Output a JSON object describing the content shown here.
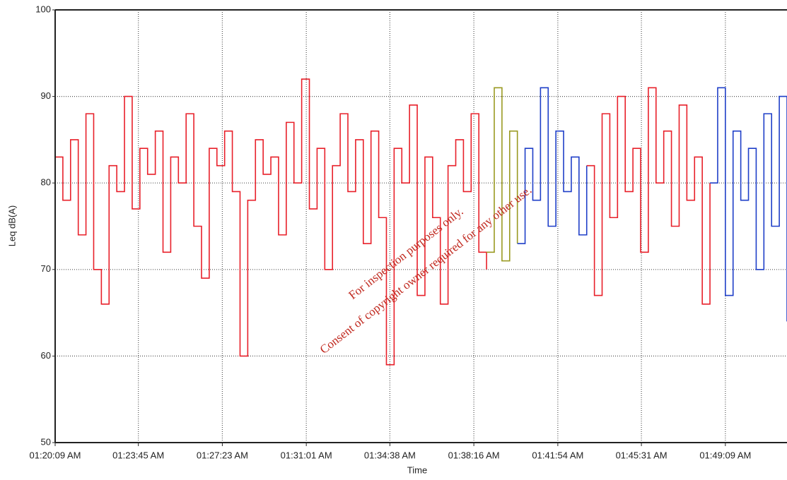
{
  "chart_data": {
    "type": "step-line",
    "y_label": "Leq dB(A)",
    "x_label": "Time",
    "annotations": [
      "For inspection purposes only.",
      "Consent of copyright owner required for any other use."
    ],
    "ylim": [
      50,
      100
    ],
    "yticks": [
      50,
      60,
      70,
      80,
      90,
      100
    ],
    "xlim": [
      "01:20:09 AM",
      "01:51:49 AM"
    ],
    "xticks": [
      "01:20:09 AM",
      "01:23:45 AM",
      "01:27:23 AM",
      "01:31:01 AM",
      "01:34:38 AM",
      "01:38:16 AM",
      "01:41:54 AM",
      "01:45:31 AM",
      "01:49:09 AM"
    ],
    "grid": true,
    "series": [
      {
        "color": "#e8202a",
        "x": [
          "01:20:09 AM",
          "01:20:29 AM",
          "01:20:49 AM",
          "01:21:09 AM",
          "01:21:29 AM",
          "01:21:49 AM",
          "01:22:09 AM",
          "01:22:29 AM",
          "01:22:49 AM",
          "01:23:09 AM",
          "01:23:29 AM",
          "01:23:49 AM",
          "01:24:09 AM",
          "01:24:29 AM",
          "01:24:49 AM",
          "01:25:09 AM",
          "01:25:29 AM",
          "01:25:49 AM",
          "01:26:09 AM",
          "01:26:29 AM",
          "01:26:49 AM",
          "01:27:09 AM",
          "01:27:29 AM",
          "01:27:49 AM",
          "01:28:09 AM",
          "01:28:29 AM",
          "01:28:49 AM",
          "01:29:09 AM",
          "01:29:29 AM",
          "01:29:49 AM",
          "01:30:09 AM",
          "01:30:29 AM",
          "01:30:49 AM",
          "01:31:09 AM",
          "01:31:29 AM",
          "01:31:49 AM",
          "01:32:09 AM",
          "01:32:29 AM",
          "01:32:49 AM",
          "01:33:09 AM",
          "01:33:29 AM",
          "01:33:49 AM",
          "01:34:09 AM",
          "01:34:29 AM",
          "01:34:49 AM",
          "01:35:09 AM",
          "01:35:29 AM",
          "01:35:49 AM",
          "01:36:09 AM",
          "01:36:29 AM",
          "01:36:49 AM",
          "01:37:09 AM",
          "01:37:29 AM",
          "01:37:49 AM",
          "01:38:09 AM",
          "01:38:29 AM",
          "01:38:49 AM"
        ],
        "values": [
          83,
          78,
          85,
          74,
          88,
          70,
          66,
          82,
          79,
          90,
          77,
          84,
          81,
          86,
          72,
          83,
          80,
          88,
          75,
          69,
          84,
          82,
          86,
          79,
          60,
          78,
          85,
          81,
          83,
          74,
          87,
          80,
          92,
          77,
          84,
          70,
          82,
          88,
          79,
          85,
          73,
          86,
          76,
          59,
          84,
          80,
          89,
          67,
          83,
          76,
          66,
          82,
          85,
          79,
          88,
          72,
          70
        ]
      },
      {
        "color": "#9a9a22",
        "x": [
          "01:38:49 AM",
          "01:39:09 AM",
          "01:39:29 AM",
          "01:39:49 AM",
          "01:40:09 AM"
        ],
        "values": [
          72,
          91,
          71,
          86,
          73
        ]
      },
      {
        "color": "#1f3fc8",
        "x": [
          "01:40:09 AM",
          "01:40:29 AM",
          "01:40:49 AM",
          "01:41:09 AM",
          "01:41:29 AM",
          "01:41:49 AM",
          "01:42:09 AM",
          "01:42:29 AM",
          "01:42:49 AM",
          "01:43:09 AM"
        ],
        "values": [
          73,
          84,
          78,
          91,
          75,
          86,
          79,
          83,
          74,
          82
        ]
      },
      {
        "color": "#e8202a",
        "x": [
          "01:43:09 AM",
          "01:43:29 AM",
          "01:43:49 AM",
          "01:44:09 AM",
          "01:44:29 AM",
          "01:44:49 AM",
          "01:45:09 AM",
          "01:45:29 AM",
          "01:45:49 AM",
          "01:46:09 AM",
          "01:46:29 AM",
          "01:46:49 AM",
          "01:47:09 AM",
          "01:47:29 AM",
          "01:47:49 AM",
          "01:48:09 AM",
          "01:48:29 AM"
        ],
        "values": [
          82,
          67,
          88,
          76,
          90,
          79,
          84,
          72,
          91,
          80,
          86,
          75,
          89,
          78,
          83,
          66,
          80
        ]
      },
      {
        "color": "#1f3fc8",
        "x": [
          "01:48:29 AM",
          "01:48:49 AM",
          "01:49:09 AM",
          "01:49:29 AM",
          "01:49:49 AM",
          "01:50:09 AM",
          "01:50:29 AM",
          "01:50:49 AM",
          "01:51:09 AM",
          "01:51:29 AM",
          "01:51:49 AM"
        ],
        "values": [
          80,
          91,
          67,
          86,
          78,
          84,
          70,
          88,
          75,
          90,
          64
        ]
      }
    ]
  }
}
